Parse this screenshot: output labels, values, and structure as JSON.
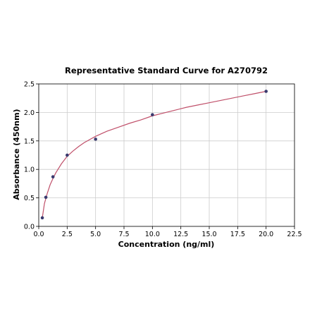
{
  "chart_data": {
    "type": "scatter",
    "title": "Representative Standard Curve for A270792",
    "xlabel": "Concentration (ng/ml)",
    "ylabel": "Absorbance (450nm)",
    "xlim": [
      0,
      22.5
    ],
    "ylim": [
      0,
      2.5
    ],
    "xticks": [
      0,
      2.5,
      5,
      7.5,
      10,
      12.5,
      15,
      17.5,
      20,
      22.5
    ],
    "xtick_labels": [
      "0.0",
      "2.5",
      "5.0",
      "7.5",
      "10.0",
      "12.5",
      "15.0",
      "17.5",
      "20.0",
      "22.5"
    ],
    "yticks": [
      0,
      0.5,
      1,
      1.5,
      2,
      2.5
    ],
    "ytick_labels": [
      "0.0",
      "0.5",
      "1.0",
      "1.5",
      "2.0",
      "2.5"
    ],
    "grid": true,
    "points": {
      "x": [
        0.3125,
        0.625,
        1.25,
        2.5,
        5,
        10,
        20
      ],
      "y": [
        0.15,
        0.51,
        0.87,
        1.25,
        1.53,
        1.96,
        2.37
      ],
      "color": "#3a3a6e"
    },
    "fit_curve": {
      "x": [
        0.3125,
        0.5,
        0.75,
        1,
        1.25,
        1.5,
        2,
        2.5,
        3,
        3.5,
        4,
        5,
        6,
        7,
        8,
        9,
        10,
        11,
        12,
        13,
        14,
        15,
        16,
        17,
        18,
        19,
        20
      ],
      "y": [
        0.15,
        0.4,
        0.58,
        0.73,
        0.84,
        0.94,
        1.1,
        1.23,
        1.32,
        1.4,
        1.47,
        1.58,
        1.67,
        1.74,
        1.81,
        1.87,
        1.94,
        1.99,
        2.04,
        2.09,
        2.13,
        2.17,
        2.21,
        2.25,
        2.29,
        2.33,
        2.37
      ],
      "color": "#c0506a"
    }
  }
}
